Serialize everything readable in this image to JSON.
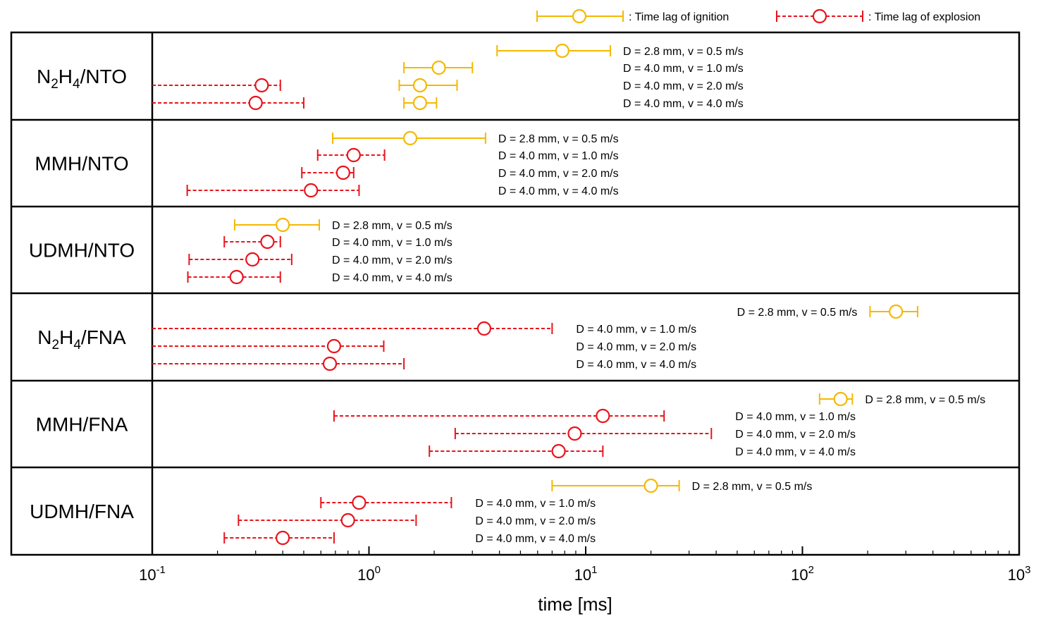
{
  "chart_data": {
    "type": "scatter",
    "xlabel": "time [ms]",
    "x_scale": "log",
    "xlim": [
      0.1,
      1000
    ],
    "x_ticks": [
      {
        "value": 0.1,
        "base": "10",
        "exp": "-1"
      },
      {
        "value": 1,
        "base": "10",
        "exp": "0"
      },
      {
        "value": 10,
        "base": "10",
        "exp": "1"
      },
      {
        "value": 100,
        "base": "10",
        "exp": "2"
      },
      {
        "value": 1000,
        "base": "10",
        "exp": "3"
      }
    ],
    "legend_position": "top-right",
    "legend": [
      {
        "key": "ignition",
        "label": ": Time lag of ignition",
        "color": "#f5b800",
        "style": "solid"
      },
      {
        "key": "explosion",
        "label": ": Time lag of explosion",
        "color": "#e8141c",
        "style": "dashed"
      }
    ],
    "groups": [
      {
        "name": "N2H4/NTO",
        "label_main": "N",
        "label_s1": "2",
        "label_mid": "H",
        "label_s2": "4",
        "label_end": "/NTO",
        "rows": [
          {
            "condition": "D = 2.8 mm, v = 0.5 m/s",
            "type": "ignition",
            "value": 7.8,
            "low": 3.9,
            "high": 13,
            "label_side": "right"
          },
          {
            "condition": "D = 4.0 mm, v = 1.0 m/s",
            "type": "ignition",
            "value": 2.1,
            "low": 1.45,
            "high": 3.0,
            "label_side": "right"
          },
          {
            "condition": "D = 4.0 mm, v = 2.0 m/s",
            "type": "ignition",
            "value": 1.72,
            "low": 1.38,
            "high": 2.55,
            "label_side": "right"
          },
          {
            "condition": "D = 4.0 mm, v = 4.0 m/s",
            "type": "ignition",
            "value": 1.72,
            "low": 1.45,
            "high": 2.05,
            "label_side": "right"
          },
          {
            "condition": "",
            "type": "explosion",
            "value": 0.32,
            "low": 0.1,
            "high": 0.39,
            "row_index": 2
          },
          {
            "condition": "",
            "type": "explosion",
            "value": 0.3,
            "low": 0.1,
            "high": 0.5,
            "row_index": 3
          }
        ]
      },
      {
        "name": "MMH/NTO",
        "label_main": "MMH/NTO",
        "rows": [
          {
            "condition": "D = 2.8 mm, v = 0.5 m/s",
            "type": "ignition",
            "value": 1.55,
            "low": 0.68,
            "high": 3.45,
            "label_side": "right"
          },
          {
            "condition": "D = 4.0 mm, v = 1.0 m/s",
            "type": "explosion",
            "value": 0.85,
            "low": 0.58,
            "high": 1.18,
            "label_side": "right"
          },
          {
            "condition": "D = 4.0 mm, v = 2.0 m/s",
            "type": "explosion",
            "value": 0.76,
            "low": 0.49,
            "high": 0.85,
            "label_side": "right"
          },
          {
            "condition": "D = 4.0 mm, v = 4.0 m/s",
            "type": "explosion",
            "value": 0.54,
            "low": 0.145,
            "high": 0.9,
            "label_side": "right"
          }
        ]
      },
      {
        "name": "UDMH/NTO",
        "label_main": "UDMH/NTO",
        "rows": [
          {
            "condition": "D = 2.8 mm, v = 0.5 m/s",
            "type": "ignition",
            "value": 0.4,
            "low": 0.24,
            "high": 0.59,
            "label_side": "right"
          },
          {
            "condition": "D = 4.0 mm, v = 1.0 m/s",
            "type": "explosion",
            "value": 0.34,
            "low": 0.215,
            "high": 0.39,
            "label_side": "right"
          },
          {
            "condition": "D = 4.0 mm, v = 2.0 m/s",
            "type": "explosion",
            "value": 0.29,
            "low": 0.148,
            "high": 0.44,
            "label_side": "right"
          },
          {
            "condition": "D = 4.0 mm, v = 4.0 m/s",
            "type": "explosion",
            "value": 0.245,
            "low": 0.146,
            "high": 0.39,
            "label_side": "right"
          }
        ]
      },
      {
        "name": "N2H4/FNA",
        "label_main": "N",
        "label_s1": "2",
        "label_mid": "H",
        "label_s2": "4",
        "label_end": "/FNA",
        "rows": [
          {
            "condition": "D = 2.8 mm, v = 0.5 m/s",
            "type": "ignition",
            "value": 270,
            "low": 205,
            "high": 340,
            "label_side": "left"
          },
          {
            "condition": "D = 4.0 mm, v = 1.0 m/s",
            "type": "explosion",
            "value": 3.4,
            "low": 0.1,
            "high": 7.0,
            "label_side": "right"
          },
          {
            "condition": "D = 4.0 mm, v = 2.0 m/s",
            "type": "explosion",
            "value": 0.69,
            "low": 0.1,
            "high": 1.17,
            "label_side": "right"
          },
          {
            "condition": "D = 4.0 mm, v = 4.0 m/s",
            "type": "explosion",
            "value": 0.66,
            "low": 0.1,
            "high": 1.45,
            "label_side": "right"
          }
        ]
      },
      {
        "name": "MMH/FNA",
        "label_main": "MMH/FNA",
        "rows": [
          {
            "condition": "D = 2.8 mm, v = 0.5 m/s",
            "type": "ignition",
            "value": 150,
            "low": 120,
            "high": 170,
            "label_side": "right"
          },
          {
            "condition": "D = 4.0 mm, v = 1.0 m/s",
            "type": "explosion",
            "value": 12,
            "low": 0.69,
            "high": 23,
            "label_side": "right"
          },
          {
            "condition": "D = 4.0 mm, v = 2.0 m/s",
            "type": "explosion",
            "value": 8.9,
            "low": 2.5,
            "high": 38,
            "label_side": "right"
          },
          {
            "condition": "D = 4.0 mm, v = 4.0 m/s",
            "type": "explosion",
            "value": 7.5,
            "low": 1.9,
            "high": 12,
            "label_side": "right"
          }
        ]
      },
      {
        "name": "UDMH/FNA",
        "label_main": "UDMH/FNA",
        "rows": [
          {
            "condition": "D = 2.8 mm, v = 0.5 m/s",
            "type": "ignition",
            "value": 20,
            "low": 7.0,
            "high": 27,
            "label_side": "right"
          },
          {
            "condition": "D = 4.0 mm, v = 1.0 m/s",
            "type": "explosion",
            "value": 0.9,
            "low": 0.6,
            "high": 2.4,
            "label_side": "right"
          },
          {
            "condition": "D = 4.0 mm, v = 2.0 m/s",
            "type": "explosion",
            "value": 0.8,
            "low": 0.25,
            "high": 1.65,
            "label_side": "right"
          },
          {
            "condition": "D = 4.0 mm, v = 4.0 m/s",
            "type": "explosion",
            "value": 0.4,
            "low": 0.215,
            "high": 0.69,
            "label_side": "right"
          }
        ]
      }
    ]
  }
}
